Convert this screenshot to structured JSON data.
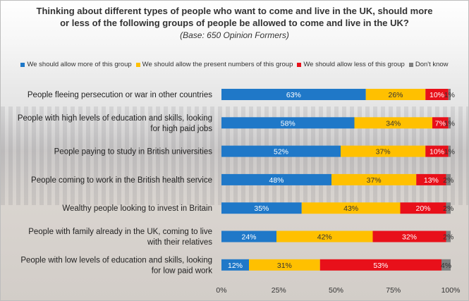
{
  "title_line1": "Thinking about different types of people who want to come and live in the UK, should more",
  "title_line2": "or less of the following groups of people be allowed to come and live in the UK?",
  "subtitle": "(Base: 650 Opinion Formers)",
  "chart_data": {
    "type": "bar",
    "orientation": "horizontal",
    "stacked": true,
    "categories": [
      [
        "People fleeing persecution or war in other countries"
      ],
      [
        "People with high levels of education and skills, looking",
        "for high paid jobs"
      ],
      [
        "People paying to study in British universities"
      ],
      [
        "People coming to work in the British health service"
      ],
      [
        "Wealthy people looking to invest in Britain"
      ],
      [
        "People with family already in the UK, coming to live",
        "with their relatives"
      ],
      [
        "People with low levels of education and skills, looking",
        "for low paid work"
      ]
    ],
    "series": [
      {
        "name": "We should allow more of this group",
        "color": "#1f78c8",
        "values": [
          63,
          58,
          52,
          48,
          35,
          24,
          12
        ],
        "labels": [
          "63%",
          "58%",
          "52%",
          "48%",
          "35%",
          "24%",
          "12%"
        ],
        "label_color": "#ffffff"
      },
      {
        "name": "We should allow the present numbers of this group",
        "color": "#ffc000",
        "values": [
          26,
          34,
          37,
          37,
          43,
          42,
          31
        ],
        "labels": [
          "26%",
          "34%",
          "37%",
          "37%",
          "43%",
          "42%",
          "31%"
        ],
        "label_color": "#333333"
      },
      {
        "name": "We should allow less of this group",
        "color": "#e8101a",
        "values": [
          10,
          7,
          10,
          13,
          20,
          32,
          53
        ],
        "labels": [
          "10%",
          "7%",
          "10%",
          "13%",
          "20%",
          "32%",
          "53%"
        ],
        "label_color": "#ffffff"
      },
      {
        "name": "Don't know",
        "color": "#808080",
        "values": [
          1,
          1,
          1,
          2,
          2,
          2,
          4
        ],
        "labels": [
          "1%",
          "1%",
          "1%",
          "2%",
          "2%",
          "2%",
          "4%"
        ],
        "label_color": "#333333"
      }
    ],
    "xticks": [
      "0%",
      "25%",
      "50%",
      "75%",
      "100%"
    ],
    "xlim": [
      0,
      100
    ],
    "legend_position": "top",
    "grid": false
  }
}
